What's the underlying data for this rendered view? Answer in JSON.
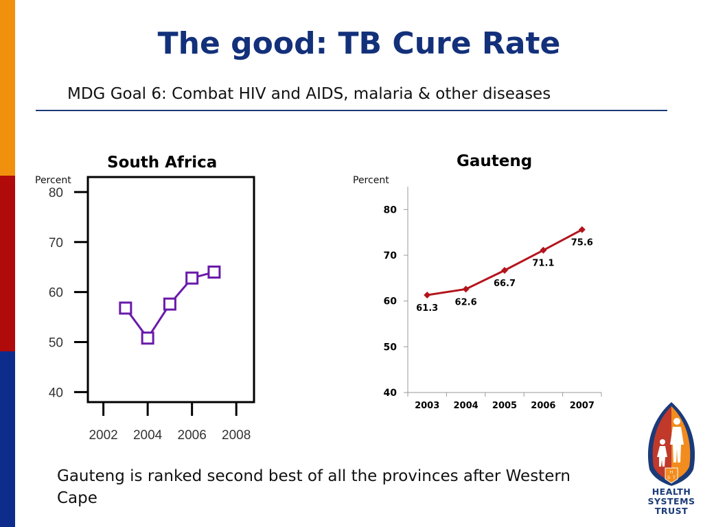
{
  "slide": {
    "title": "The good: TB Cure Rate",
    "subtitle": "MDG Goal 6: Combat HIV and AIDS, malaria & other diseases",
    "footer": "Gauteng is ranked second best of all the provinces after Western Cape",
    "colors": {
      "stripe_top": "#f0900c",
      "stripe_mid": "#b00a0a",
      "stripe_bottom": "#0d2c8c",
      "title": "#13307a"
    }
  },
  "logo": {
    "lines": [
      "HEALTH",
      "SYSTEMS",
      "TRUST"
    ],
    "shield_letters": [
      "H",
      "S",
      "T"
    ]
  },
  "chart_data": [
    {
      "type": "line",
      "title": "South Africa",
      "ylabel": "Percent",
      "x": [
        2003,
        2004,
        2005,
        2006,
        2007
      ],
      "series": [
        {
          "values": [
            56.8,
            50.8,
            57.6,
            62.8,
            64.0
          ]
        }
      ],
      "xticks": [
        2002,
        2004,
        2006,
        2008
      ],
      "xticklabels": [
        "2002",
        "2004",
        "2006",
        "2008"
      ],
      "yticks": [
        40,
        50,
        60,
        70,
        80
      ],
      "yticklabels": [
        "40",
        "50",
        "60",
        "70",
        "80"
      ],
      "xlim": [
        2001.3,
        2008.8
      ],
      "ylim": [
        38,
        83
      ],
      "grid": false,
      "marker": "square",
      "color": "#6a1aaa"
    },
    {
      "type": "line",
      "title": "Gauteng",
      "ylabel": "Percent",
      "categories": [
        "2003",
        "2004",
        "2005",
        "2006",
        "2007"
      ],
      "series": [
        {
          "values": [
            61.3,
            62.6,
            66.7,
            71.1,
            75.6
          ],
          "labels": [
            "61.3",
            "62.6",
            "66.7",
            "71.1",
            "75.6"
          ]
        }
      ],
      "yticks": [
        40,
        50,
        60,
        70,
        80
      ],
      "yticklabels": [
        "40",
        "50",
        "60",
        "70",
        "80"
      ],
      "ylim": [
        40,
        85
      ],
      "grid": false,
      "marker": "diamond",
      "color": "#b3141c"
    }
  ]
}
